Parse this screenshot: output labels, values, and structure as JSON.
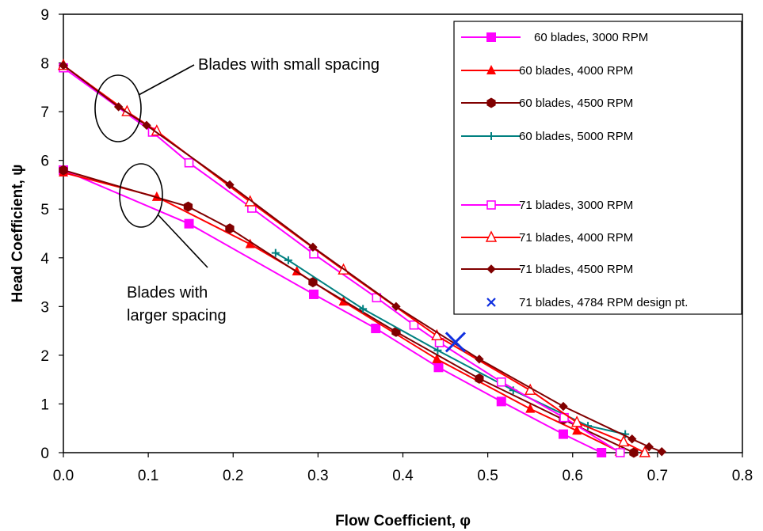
{
  "chart_data": {
    "type": "line",
    "title": "",
    "xlabel": "Flow Coefficient, φ",
    "ylabel": "Head Coefficient, ψ",
    "xlim": [
      0.0,
      0.8
    ],
    "ylim": [
      0,
      9
    ],
    "x_ticks": [
      "0.0",
      "0.1",
      "0.2",
      "0.3",
      "0.4",
      "0.5",
      "0.6",
      "0.7",
      "0.8"
    ],
    "y_ticks": [
      "0",
      "1",
      "2",
      "3",
      "4",
      "5",
      "6",
      "7",
      "8",
      "9"
    ],
    "grid": false,
    "legend_position": "top-right",
    "series": [
      {
        "name": "60 blades, 3000 RPM",
        "color": "#FF00FF",
        "marker": "square-filled",
        "x": [
          0.0,
          0.148,
          0.295,
          0.368,
          0.442,
          0.516,
          0.589,
          0.634
        ],
        "y": [
          5.8,
          4.7,
          3.25,
          2.55,
          1.75,
          1.05,
          0.38,
          0.0
        ]
      },
      {
        "name": "60 blades, 4000 RPM",
        "color": "#FF0000",
        "marker": "triangle-filled",
        "x": [
          0.0,
          0.11,
          0.22,
          0.275,
          0.33,
          0.44,
          0.55,
          0.605,
          0.655
        ],
        "y": [
          5.75,
          5.25,
          4.28,
          3.72,
          3.1,
          1.92,
          0.9,
          0.45,
          0.02
        ]
      },
      {
        "name": "60 blades, 4500 RPM",
        "color": "#800000",
        "marker": "hexagon-filled",
        "x": [
          0.0,
          0.147,
          0.196,
          0.294,
          0.392,
          0.49,
          0.589,
          0.672
        ],
        "y": [
          5.8,
          5.05,
          4.6,
          3.5,
          2.48,
          1.52,
          0.68,
          0.0
        ]
      },
      {
        "name": "60 blades, 5000 RPM",
        "color": "#008080",
        "marker": "plus",
        "x": [
          0.25,
          0.265,
          0.353,
          0.441,
          0.53,
          0.618,
          0.662
        ],
        "y": [
          4.1,
          3.95,
          2.95,
          2.1,
          1.28,
          0.55,
          0.38
        ]
      },
      {
        "name": "71 blades, 3000 RPM",
        "color": "#FF00FF",
        "marker": "square-open",
        "x": [
          0.0,
          0.105,
          0.148,
          0.222,
          0.295,
          0.369,
          0.413,
          0.443,
          0.516,
          0.59,
          0.656
        ],
        "y": [
          7.9,
          6.58,
          5.95,
          5.02,
          4.08,
          3.18,
          2.62,
          2.26,
          1.45,
          0.72,
          0.0
        ]
      },
      {
        "name": "71 blades, 4000 RPM",
        "color": "#FF0000",
        "marker": "triangle-open",
        "x": [
          0.0,
          0.075,
          0.11,
          0.22,
          0.33,
          0.44,
          0.55,
          0.605,
          0.66,
          0.685
        ],
        "y": [
          7.95,
          7.0,
          6.6,
          5.15,
          3.75,
          2.4,
          1.28,
          0.62,
          0.22,
          0.0
        ]
      },
      {
        "name": "71 blades, 4500 RPM",
        "color": "#800000",
        "marker": "diamond",
        "x": [
          0.0,
          0.065,
          0.098,
          0.196,
          0.294,
          0.392,
          0.49,
          0.589,
          0.67,
          0.69,
          0.705
        ],
        "y": [
          7.95,
          7.1,
          6.72,
          5.5,
          4.22,
          3.0,
          1.92,
          0.95,
          0.28,
          0.12,
          0.02
        ]
      },
      {
        "name": "71 blades, 4784 RPM design pt.",
        "color": "#1030E0",
        "marker": "x",
        "x": [
          0.462
        ],
        "y": [
          2.27
        ]
      }
    ]
  },
  "annotations": {
    "small_spacing": "Blades with small spacing",
    "larger_spacing_line1": "Blades with",
    "larger_spacing_line2": "larger spacing"
  }
}
